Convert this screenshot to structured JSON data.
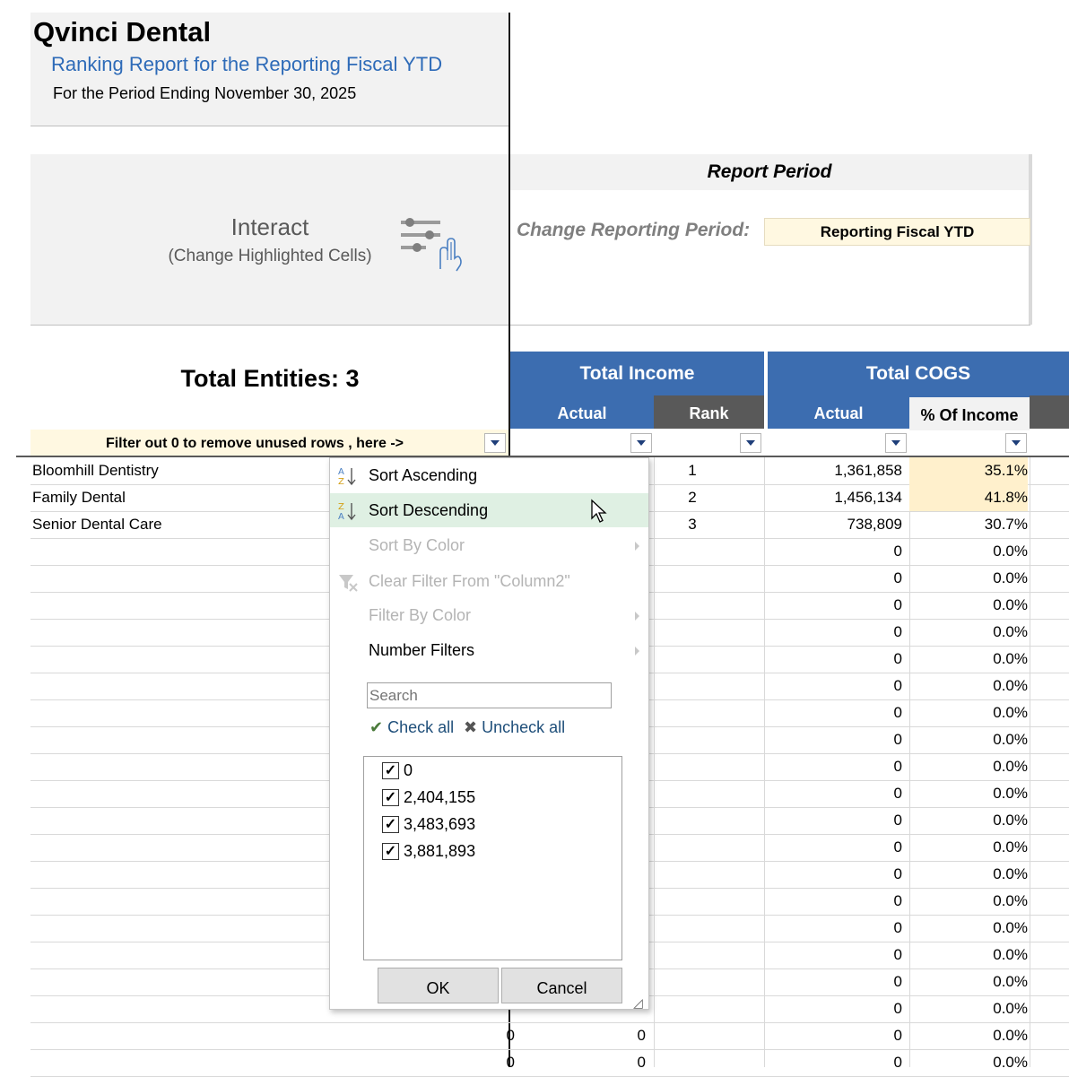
{
  "header": {
    "company": "Qvinci Dental",
    "report_title": "Ranking Report for the Reporting Fiscal YTD",
    "period": "For the Period Ending November 30, 2025"
  },
  "interact": {
    "title": "Interact",
    "subtitle": "(Change Highlighted Cells)"
  },
  "report_period": {
    "title": "Report Period",
    "label": "Change Reporting Period:",
    "value": "Reporting Fiscal YTD"
  },
  "entities_label": "Total Entities: 3",
  "columns": {
    "total_income": "Total Income",
    "total_cogs": "Total COGS",
    "actual": "Actual",
    "rank": "Rank",
    "pct_of_income": "% Of Income"
  },
  "filter_hint": "Filter out 0 to remove unused rows , here ->",
  "rows": [
    {
      "name": "Bloomhill Dentistry",
      "rank": "1",
      "cogs": "1,361,858",
      "pct": "35.1%"
    },
    {
      "name": "Family Dental",
      "rank": "2",
      "cogs": "1,456,134",
      "pct": "41.8%"
    },
    {
      "name": "Senior Dental Care",
      "rank": "3",
      "cogs": "738,809",
      "pct": "30.7%"
    }
  ],
  "zero_row": {
    "value": "0",
    "pct": "0.0%"
  },
  "bottom_rows": [
    {
      "inc": "0",
      "inc2": "0",
      "cogs": "0",
      "pct": "0.0%"
    },
    {
      "inc": "0",
      "inc2": "0",
      "cogs": "0",
      "pct": "0.0%"
    }
  ],
  "menu": {
    "sort_asc": "Sort Ascending",
    "sort_desc": "Sort Descending",
    "sort_color": "Sort By Color",
    "clear_filter": "Clear Filter From \"Column2\"",
    "filter_color": "Filter By Color",
    "number_filters": "Number Filters",
    "search_placeholder": "Search",
    "check_all": "Check all",
    "uncheck_all": "Uncheck all",
    "items": [
      "0",
      "2,404,155",
      "3,483,693",
      "3,881,893"
    ],
    "ok": "OK",
    "cancel": "Cancel"
  }
}
